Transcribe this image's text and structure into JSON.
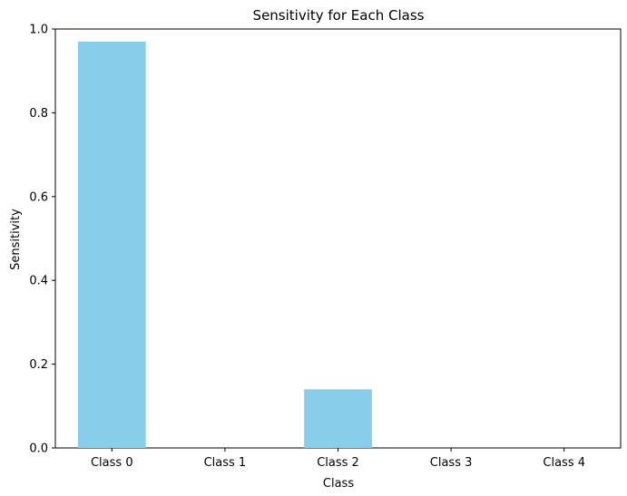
{
  "chart_data": {
    "type": "bar",
    "title": "Sensitivity for Each Class",
    "xlabel": "Class",
    "ylabel": "Sensitivity",
    "categories": [
      "Class 0",
      "Class 1",
      "Class 2",
      "Class 3",
      "Class 4"
    ],
    "values": [
      0.97,
      0.0,
      0.14,
      0.0,
      0.0
    ],
    "ylim": [
      0,
      1.0
    ],
    "yticks": [
      0.0,
      0.2,
      0.4,
      0.6,
      0.8,
      1.0
    ],
    "ytick_labels": [
      "0.0",
      "0.2",
      "0.4",
      "0.6",
      "0.8",
      "1.0"
    ],
    "bar_color": "#87ceeb",
    "grid": false,
    "legend": false
  }
}
